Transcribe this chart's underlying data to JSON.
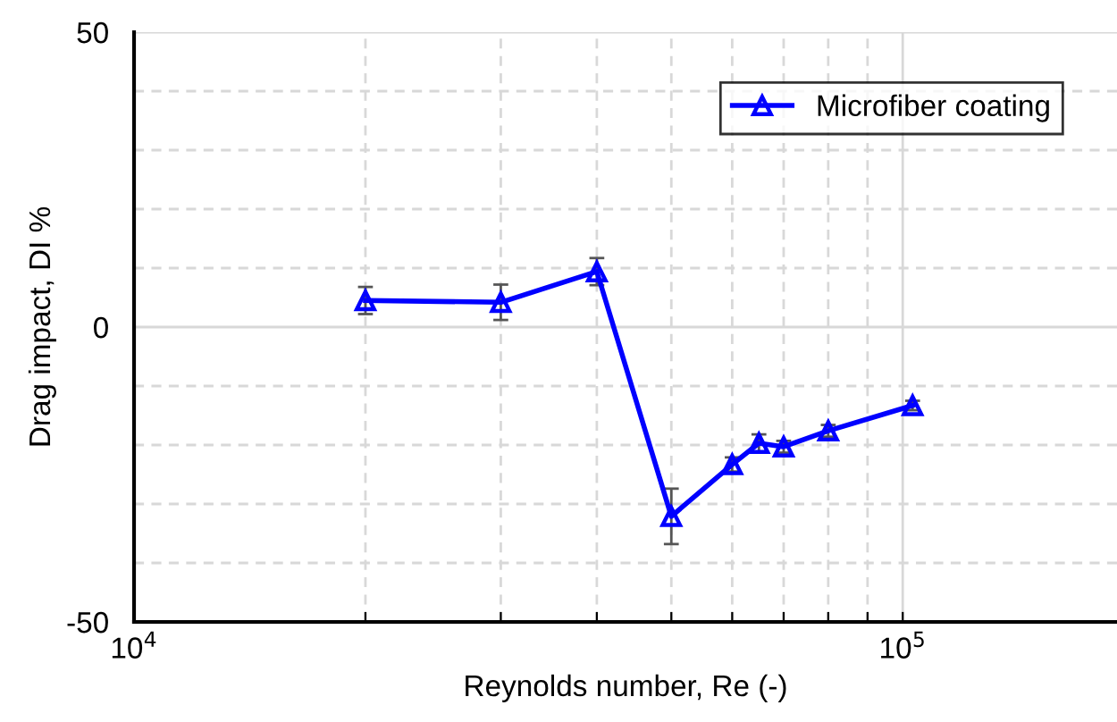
{
  "chart_data": {
    "type": "line",
    "xlabel": "Reynolds number, Re (-)",
    "ylabel": "Drag impact, DI %",
    "x": [
      20000,
      30000,
      40000,
      50000,
      60000,
      65000,
      70000,
      80000,
      103000
    ],
    "series": [
      {
        "name": "Microfiber coating",
        "color": "#0000ff",
        "values": [
          4.5,
          4.2,
          9.4,
          -32.1,
          -23.3,
          -19.7,
          -20.3,
          -17.6,
          -13.3
        ],
        "errors": [
          2.3,
          3,
          2.3,
          4.7,
          1.2,
          1.5,
          1,
          1,
          0.8
        ]
      }
    ],
    "log": "x",
    "xlim": [
      10000,
      190000
    ],
    "xticks": [
      {
        "value": 10000,
        "label": "10$^{4}$"
      },
      {
        "value": 20000,
        "label": null
      },
      {
        "value": 30000,
        "label": null
      },
      {
        "value": 40000,
        "label": null
      },
      {
        "value": 50000,
        "label": null
      },
      {
        "value": 60000,
        "label": null
      },
      {
        "value": 70000,
        "label": null
      },
      {
        "value": 80000,
        "label": null
      },
      {
        "value": 90000,
        "label": null
      },
      {
        "value": 100000,
        "label": "10$^{5}$"
      }
    ],
    "ylim": [
      -50,
      50
    ],
    "yticks": [
      -50,
      {
        "value": -40,
        "label": null
      },
      {
        "value": -30,
        "label": null
      },
      {
        "value": -20,
        "label": null
      },
      {
        "value": -10,
        "label": null
      },
      0,
      {
        "value": 10,
        "label": null
      },
      {
        "value": 20,
        "label": null
      },
      {
        "value": 30,
        "label": null
      },
      {
        "value": 40,
        "label": null
      },
      50
    ],
    "grid": true,
    "legend": "top right",
    "marker": "triangle",
    "line_style": "solid"
  }
}
